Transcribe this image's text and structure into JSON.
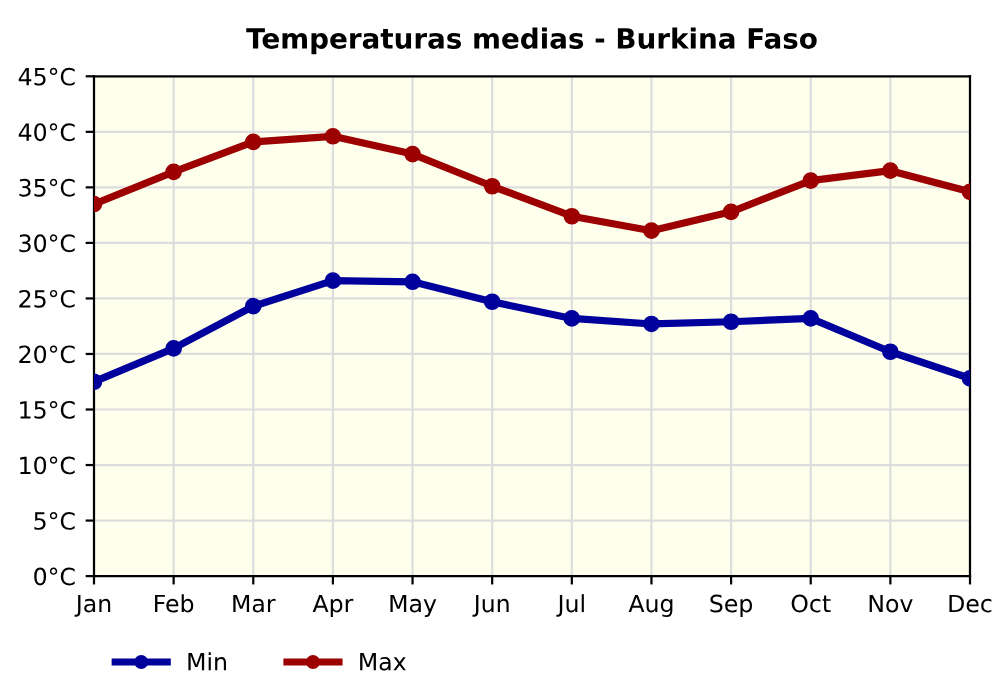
{
  "chart_data": {
    "type": "line",
    "title": "Temperaturas medias - Burkina Faso",
    "categories": [
      "Jan",
      "Feb",
      "Mar",
      "Apr",
      "May",
      "Jun",
      "Jul",
      "Aug",
      "Sep",
      "Oct",
      "Nov",
      "Dec"
    ],
    "series": [
      {
        "name": "Min",
        "color": "#00009c",
        "values": [
          17.5,
          20.5,
          24.3,
          26.6,
          26.5,
          24.7,
          23.2,
          22.7,
          22.9,
          23.2,
          20.2,
          17.8
        ]
      },
      {
        "name": "Max",
        "color": "#9c0000",
        "values": [
          33.5,
          36.4,
          39.1,
          39.6,
          38.0,
          35.1,
          32.4,
          31.1,
          32.8,
          35.6,
          36.5,
          34.6
        ]
      }
    ],
    "ylim": [
      0,
      45
    ],
    "yticks": [
      {
        "value": 0,
        "label": "0°C"
      },
      {
        "value": 5,
        "label": "5°C"
      },
      {
        "value": 10,
        "label": "10°C"
      },
      {
        "value": 15,
        "label": "15°C"
      },
      {
        "value": 20,
        "label": "20°C"
      },
      {
        "value": 25,
        "label": "25°C"
      },
      {
        "value": 30,
        "label": "30°C"
      },
      {
        "value": 35,
        "label": "35°C"
      },
      {
        "value": 40,
        "label": "40°C"
      },
      {
        "value": 45,
        "label": "45°C"
      }
    ],
    "grid": true,
    "legend": "bottom left",
    "marker": "circle",
    "line_style": "solid"
  }
}
